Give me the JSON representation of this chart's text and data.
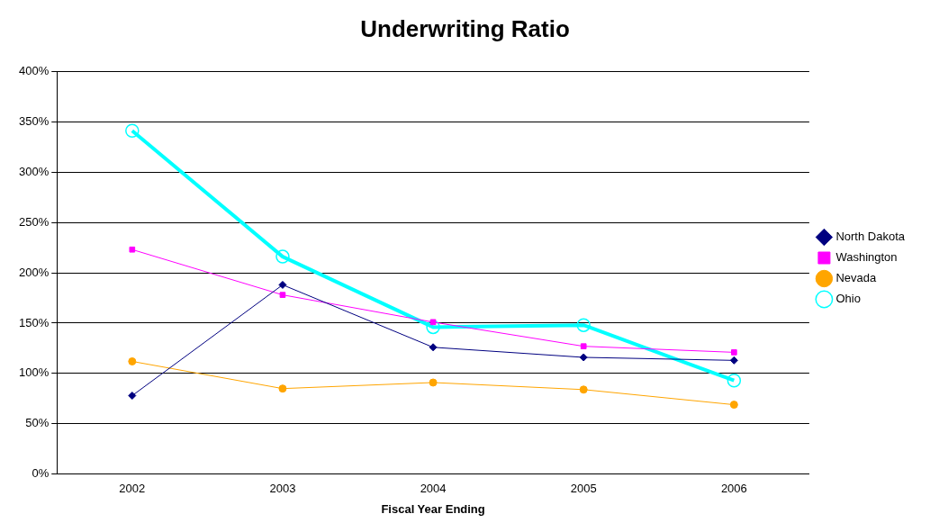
{
  "chart_data": {
    "type": "line",
    "title": "Underwriting Ratio",
    "xlabel": "Fiscal Year Ending",
    "categories": [
      "2002",
      "2003",
      "2004",
      "2005",
      "2006"
    ],
    "series": [
      {
        "name": "North Dakota",
        "color": "#000080",
        "marker": "diamond",
        "values": [
          78,
          188,
          126,
          116,
          113
        ]
      },
      {
        "name": "Washington",
        "color": "#ff00ff",
        "marker": "square",
        "values": [
          223,
          178,
          151,
          127,
          121
        ]
      },
      {
        "name": "Nevada",
        "color": "#ffa500",
        "marker": "circle",
        "values": [
          112,
          85,
          91,
          84,
          69
        ]
      },
      {
        "name": "Ohio",
        "color": "#00ffff",
        "marker": "circle",
        "values": [
          341,
          216,
          146,
          148,
          93
        ]
      }
    ],
    "ylim": [
      0,
      400
    ],
    "yticks": [
      {
        "value": 0,
        "label": "0%"
      },
      {
        "value": 50,
        "label": "50%"
      },
      {
        "value": 100,
        "label": "100%"
      },
      {
        "value": 150,
        "label": "150%"
      },
      {
        "value": 200,
        "label": "200%"
      },
      {
        "value": 250,
        "label": "250%"
      },
      {
        "value": 300,
        "label": "300%"
      },
      {
        "value": 350,
        "label": "350%"
      },
      {
        "value": 400,
        "label": "400%"
      }
    ],
    "grid": "y",
    "legend": "right",
    "line_style": "solid"
  }
}
